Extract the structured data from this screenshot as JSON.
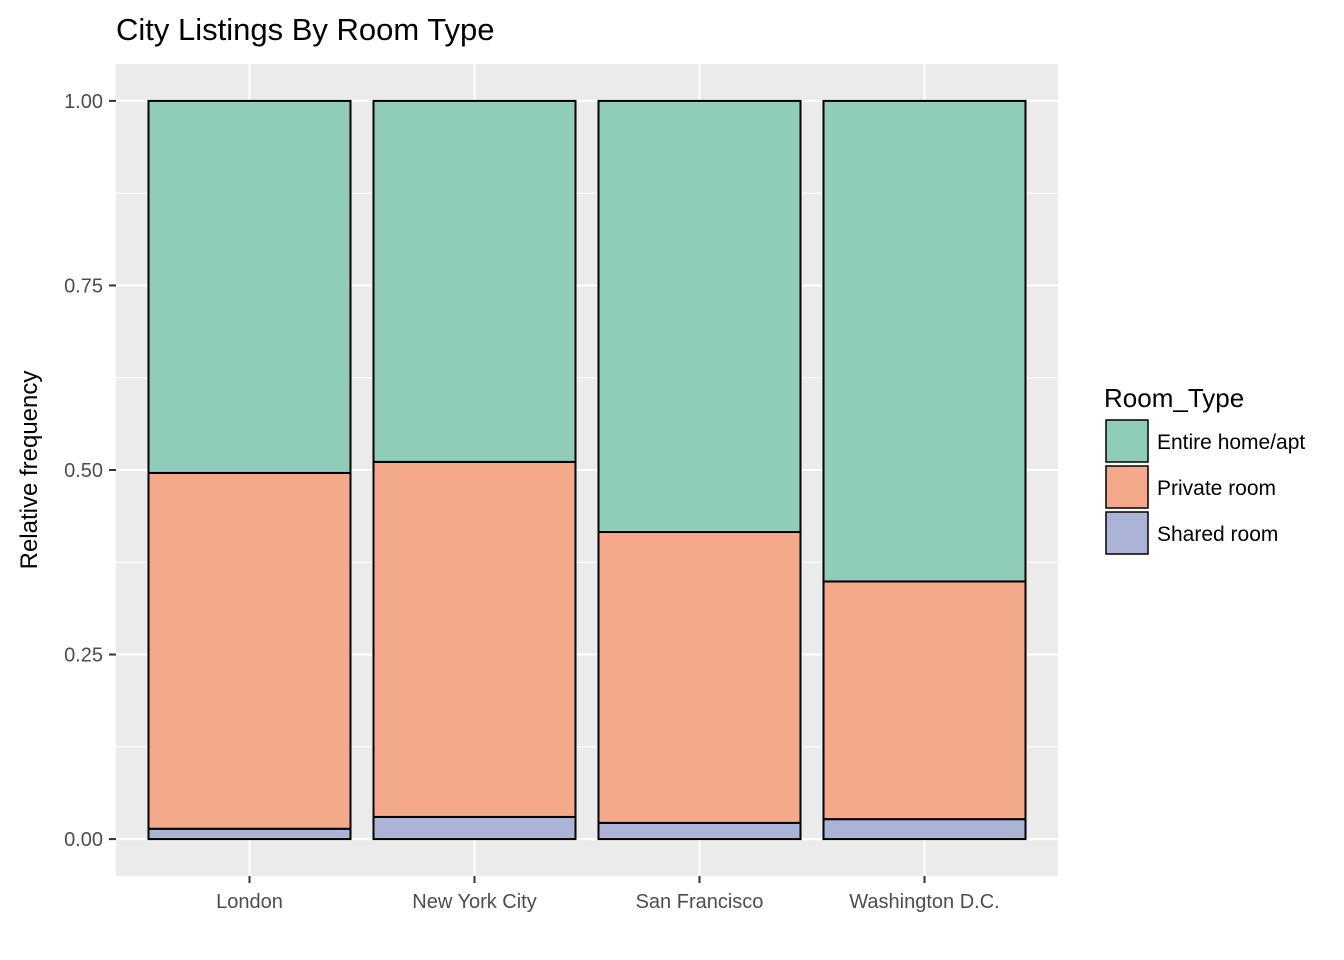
{
  "chart_data": {
    "type": "bar",
    "stacked": true,
    "title": "City Listings By Room Type",
    "xlabel": "",
    "ylabel": "Relative frequency",
    "ylim": [
      -0.05,
      1.05
    ],
    "yticks": [
      "0.00",
      "0.25",
      "0.50",
      "0.75",
      "1.00"
    ],
    "ytick_values": [
      0,
      0.25,
      0.5,
      0.75,
      1.0
    ],
    "grid": true,
    "legend_position": "right",
    "legend_title": "Room_Type",
    "categories": [
      "London",
      "New York City",
      "San Francisco",
      "Washington D.C."
    ],
    "series": [
      {
        "name": "Shared room",
        "color": "#abb4d6",
        "values": [
          0.014,
          0.03,
          0.022,
          0.027
        ]
      },
      {
        "name": "Private room",
        "color": "#f5a98b",
        "values": [
          0.482,
          0.481,
          0.394,
          0.322
        ]
      },
      {
        "name": "Entire home/apt",
        "color": "#8fcdba",
        "values": [
          0.504,
          0.489,
          0.584,
          0.651
        ]
      }
    ],
    "legend_order": [
      "Entire home/apt",
      "Private room",
      "Shared room"
    ],
    "colors": {
      "panel_background": "#ebebeb",
      "gridline": "#ffffff",
      "bar_outline": "#000000"
    }
  }
}
